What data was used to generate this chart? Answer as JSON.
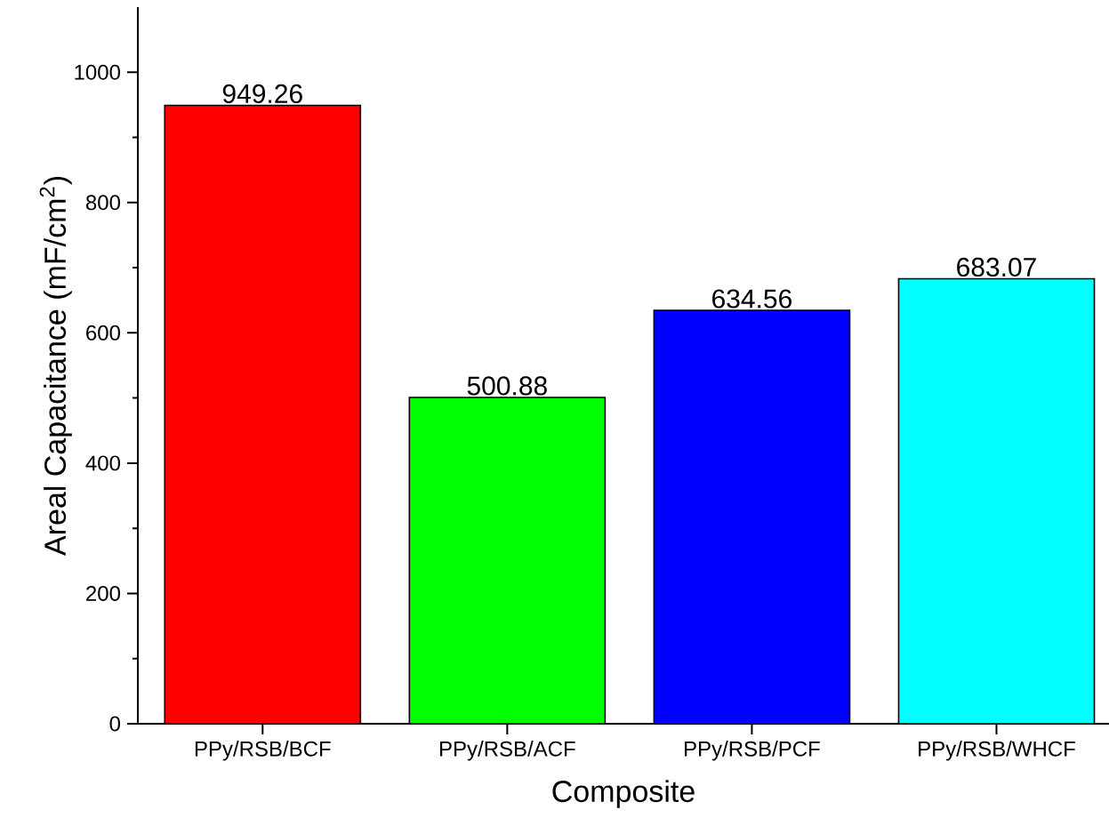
{
  "chart_data": {
    "type": "bar",
    "xlabel": "Composite",
    "ylabel": "Areal Capacitance (mF/cm$^{2}$)",
    "categories": [
      "PPy/RSB/BCF",
      "PPy/RSB/ACF",
      "PPy/RSB/PCF",
      "PPy/RSB/WHCF"
    ],
    "values": [
      949.26,
      500.88,
      634.56,
      683.07
    ],
    "colors": [
      "#ff0000",
      "#00ff00",
      "#0000ff",
      "#00ffff"
    ],
    "ylim": [
      0,
      1100
    ],
    "yticks": [
      0,
      200,
      400,
      600,
      800,
      1000
    ],
    "data_labels": true
  }
}
